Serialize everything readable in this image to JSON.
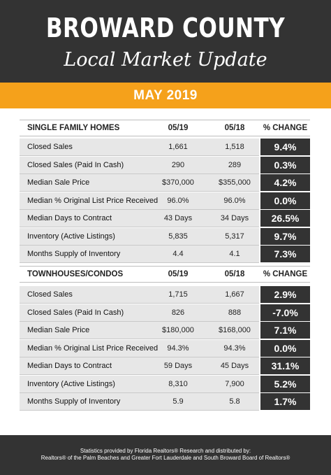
{
  "header": {
    "title": "BROWARD COUNTY",
    "subtitle": "Local Market Update"
  },
  "banner": {
    "month": "MAY 2019",
    "color": "#f5a11b"
  },
  "sections": [
    {
      "heading": "SINGLE FAMILY HOMES",
      "col1": "05/19",
      "col2": "05/18",
      "col3": "% CHANGE",
      "rows": [
        {
          "label": "Closed Sales",
          "v1": "1,661",
          "v2": "1,518",
          "change": "9.4%"
        },
        {
          "label": "Closed Sales (Paid In Cash)",
          "v1": "290",
          "v2": "289",
          "change": "0.3%"
        },
        {
          "label": "Median Sale Price",
          "v1": "$370,000",
          "v2": "$355,000",
          "change": "4.2%"
        },
        {
          "label": "Median % Original List Price Received",
          "v1": "96.0%",
          "v2": "96.0%",
          "change": "0.0%"
        },
        {
          "label": "Median Days to Contract",
          "v1": "43 Days",
          "v2": "34 Days",
          "change": "26.5%"
        },
        {
          "label": "Inventory (Active Listings)",
          "v1": "5,835",
          "v2": "5,317",
          "change": "9.7%"
        },
        {
          "label": "Months Supply of Inventory",
          "v1": "4.4",
          "v2": "4.1",
          "change": "7.3%"
        }
      ]
    },
    {
      "heading": "TOWNHOUSES/CONDOS",
      "col1": "05/19",
      "col2": "05/18",
      "col3": "% CHANGE",
      "rows": [
        {
          "label": "Closed Sales",
          "v1": "1,715",
          "v2": "1,667",
          "change": "2.9%"
        },
        {
          "label": "Closed Sales (Paid In Cash)",
          "v1": "826",
          "v2": "888",
          "change": "-7.0%"
        },
        {
          "label": "Median Sale Price",
          "v1": "$180,000",
          "v2": "$168,000",
          "change": "7.1%"
        },
        {
          "label": "Median % Original List Price Received",
          "v1": "94.3%",
          "v2": "94.3%",
          "change": "0.0%"
        },
        {
          "label": "Median Days to Contract",
          "v1": "59 Days",
          "v2": "45 Days",
          "change": "31.1%"
        },
        {
          "label": "Inventory (Active Listings)",
          "v1": "8,310",
          "v2": "7,900",
          "change": "5.2%"
        },
        {
          "label": "Months Supply of Inventory",
          "v1": "5.9",
          "v2": "5.8",
          "change": "1.7%"
        }
      ]
    }
  ],
  "footer": {
    "line1": "Statistics provided by Florida Realtors® Research and distributed by:",
    "line2": "Realtors® of the Palm Beaches and Greater Fort Lauderdale and South Broward Board of Realtors®"
  }
}
